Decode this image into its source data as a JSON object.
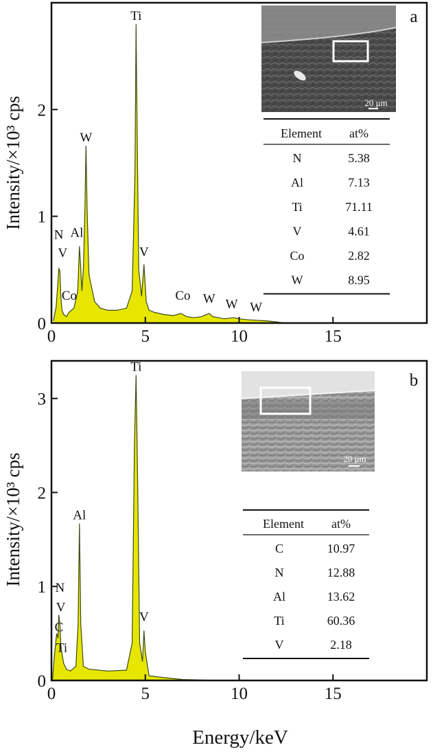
{
  "x_axis_label": "Energy/keV",
  "colors": {
    "spectrum_fill": "#e6e600",
    "spectrum_edge": "#3a4a1a",
    "frame": "#111111",
    "sem_bg": "#555555"
  },
  "chart_data": [
    {
      "type": "area",
      "panel_label": "a",
      "ylabel": "Intensity/×10³ cps",
      "xlim": [
        0,
        20
      ],
      "ylim": [
        0,
        3.0
      ],
      "x_ticks": [
        0,
        5,
        10,
        15
      ],
      "y_ticks": [
        0,
        1,
        2
      ],
      "grid": false,
      "spectrum": {
        "x": [
          0.1,
          0.25,
          0.35,
          0.39,
          0.45,
          0.5,
          0.56,
          0.65,
          0.8,
          0.93,
          1.2,
          1.4,
          1.49,
          1.55,
          1.62,
          1.7,
          1.78,
          1.84,
          1.9,
          2.0,
          2.3,
          2.6,
          3.0,
          3.5,
          4.0,
          4.3,
          4.45,
          4.51,
          4.57,
          4.65,
          4.8,
          4.93,
          4.98,
          5.05,
          5.2,
          5.5,
          6.0,
          6.5,
          6.9,
          7.2,
          7.6,
          8.0,
          8.4,
          8.6,
          8.9,
          9.2,
          9.7,
          10.0,
          10.5,
          11.5,
          12.0,
          12.4
        ],
        "y": [
          0.02,
          0.15,
          0.4,
          0.51,
          0.49,
          0.25,
          0.12,
          0.08,
          0.06,
          0.1,
          0.14,
          0.3,
          0.72,
          0.55,
          0.3,
          0.5,
          1.05,
          1.66,
          1.05,
          0.45,
          0.2,
          0.14,
          0.12,
          0.12,
          0.14,
          0.3,
          1.4,
          2.8,
          1.7,
          0.5,
          0.25,
          0.55,
          0.4,
          0.2,
          0.12,
          0.1,
          0.08,
          0.07,
          0.09,
          0.06,
          0.05,
          0.06,
          0.09,
          0.06,
          0.05,
          0.04,
          0.05,
          0.04,
          0.03,
          0.02,
          0.01,
          0.0
        ]
      },
      "peak_labels": [
        {
          "text": "Ti",
          "x": 4.51,
          "y": 2.8
        },
        {
          "text": "W",
          "x": 1.84,
          "y": 1.66
        },
        {
          "text": "N",
          "x": 0.39,
          "y": 0.75
        },
        {
          "text": "Al",
          "x": 1.35,
          "y": 0.77
        },
        {
          "text": "V",
          "x": 0.6,
          "y": 0.58
        },
        {
          "text": "V",
          "x": 4.93,
          "y": 0.59
        },
        {
          "text": "Co",
          "x": 0.95,
          "y": 0.18
        },
        {
          "text": "Co",
          "x": 7.0,
          "y": 0.18
        },
        {
          "text": "W",
          "x": 8.4,
          "y": 0.15
        },
        {
          "text": "W",
          "x": 9.6,
          "y": 0.1
        },
        {
          "text": "W",
          "x": 10.9,
          "y": 0.07
        }
      ],
      "inset": {
        "scale_bar": "20 μm"
      },
      "table": {
        "headers": [
          "Element",
          "at%"
        ],
        "rows": [
          [
            "N",
            "5.38"
          ],
          [
            "Al",
            "7.13"
          ],
          [
            "Ti",
            "71.11"
          ],
          [
            "V",
            "4.61"
          ],
          [
            "Co",
            "2.82"
          ],
          [
            "W",
            "8.95"
          ]
        ]
      }
    },
    {
      "type": "area",
      "panel_label": "b",
      "ylabel": "Intensity/×10³ cps",
      "xlim": [
        0,
        20
      ],
      "ylim": [
        0,
        3.4
      ],
      "x_ticks": [
        0,
        5,
        10,
        15
      ],
      "y_ticks": [
        0,
        1,
        2,
        3
      ],
      "grid": false,
      "spectrum": {
        "x": [
          0.05,
          0.15,
          0.25,
          0.28,
          0.35,
          0.39,
          0.45,
          0.5,
          0.55,
          0.65,
          0.8,
          1.0,
          1.3,
          1.42,
          1.49,
          1.56,
          1.7,
          2.0,
          3.0,
          4.0,
          4.3,
          4.42,
          4.51,
          4.6,
          4.7,
          4.85,
          4.93,
          5.0,
          5.2,
          6.0,
          7.0,
          8.0,
          9.0
        ],
        "y": [
          0.0,
          0.25,
          0.45,
          0.5,
          0.45,
          0.7,
          0.6,
          0.38,
          0.3,
          0.18,
          0.12,
          0.1,
          0.15,
          0.6,
          1.67,
          0.6,
          0.15,
          0.12,
          0.1,
          0.11,
          0.4,
          2.5,
          3.25,
          2.0,
          0.4,
          0.2,
          0.53,
          0.3,
          0.05,
          0.03,
          0.01,
          0.005,
          0.0
        ]
      },
      "peak_labels": [
        {
          "text": "Ti",
          "x": 4.51,
          "y": 3.25
        },
        {
          "text": "Al",
          "x": 1.49,
          "y": 1.67
        },
        {
          "text": "N",
          "x": 0.45,
          "y": 0.9
        },
        {
          "text": "V",
          "x": 0.5,
          "y": 0.69
        },
        {
          "text": "C",
          "x": 0.4,
          "y": 0.48
        },
        {
          "text": "Ti",
          "x": 0.55,
          "y": 0.26
        },
        {
          "text": "V",
          "x": 4.93,
          "y": 0.59
        }
      ],
      "inset": {
        "scale_bar": "20 μm"
      },
      "table": {
        "headers": [
          "Element",
          "at%"
        ],
        "rows": [
          [
            "C",
            "10.97"
          ],
          [
            "N",
            "12.88"
          ],
          [
            "Al",
            "13.62"
          ],
          [
            "Ti",
            "60.36"
          ],
          [
            "V",
            "2.18"
          ]
        ]
      }
    }
  ]
}
